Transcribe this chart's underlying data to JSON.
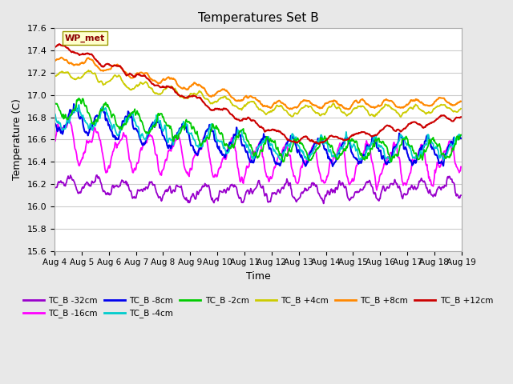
{
  "title": "Temperatures Set B",
  "xlabel": "Time",
  "ylabel": "Temperature (C)",
  "ylim": [
    15.6,
    17.6
  ],
  "bg_color": "#e8e8e8",
  "plot_bg_color": "#ffffff",
  "series": [
    {
      "label": "TC_B -32cm",
      "color": "#9900cc",
      "lw": 1.3
    },
    {
      "label": "TC_B -16cm",
      "color": "#ff00ff",
      "lw": 1.3
    },
    {
      "label": "TC_B -8cm",
      "color": "#0000ee",
      "lw": 1.5
    },
    {
      "label": "TC_B -4cm",
      "color": "#00cccc",
      "lw": 1.3
    },
    {
      "label": "TC_B -2cm",
      "color": "#00cc00",
      "lw": 1.3
    },
    {
      "label": "TC_B +4cm",
      "color": "#cccc00",
      "lw": 1.3
    },
    {
      "label": "TC_B +8cm",
      "color": "#ff8800",
      "lw": 1.5
    },
    {
      "label": "TC_B +12cm",
      "color": "#cc0000",
      "lw": 1.5
    }
  ],
  "ytick_vals": [
    15.6,
    15.8,
    16.0,
    16.2,
    16.4,
    16.6,
    16.8,
    17.0,
    17.2,
    17.4,
    17.6
  ],
  "figsize": [
    6.4,
    4.8
  ],
  "dpi": 100
}
